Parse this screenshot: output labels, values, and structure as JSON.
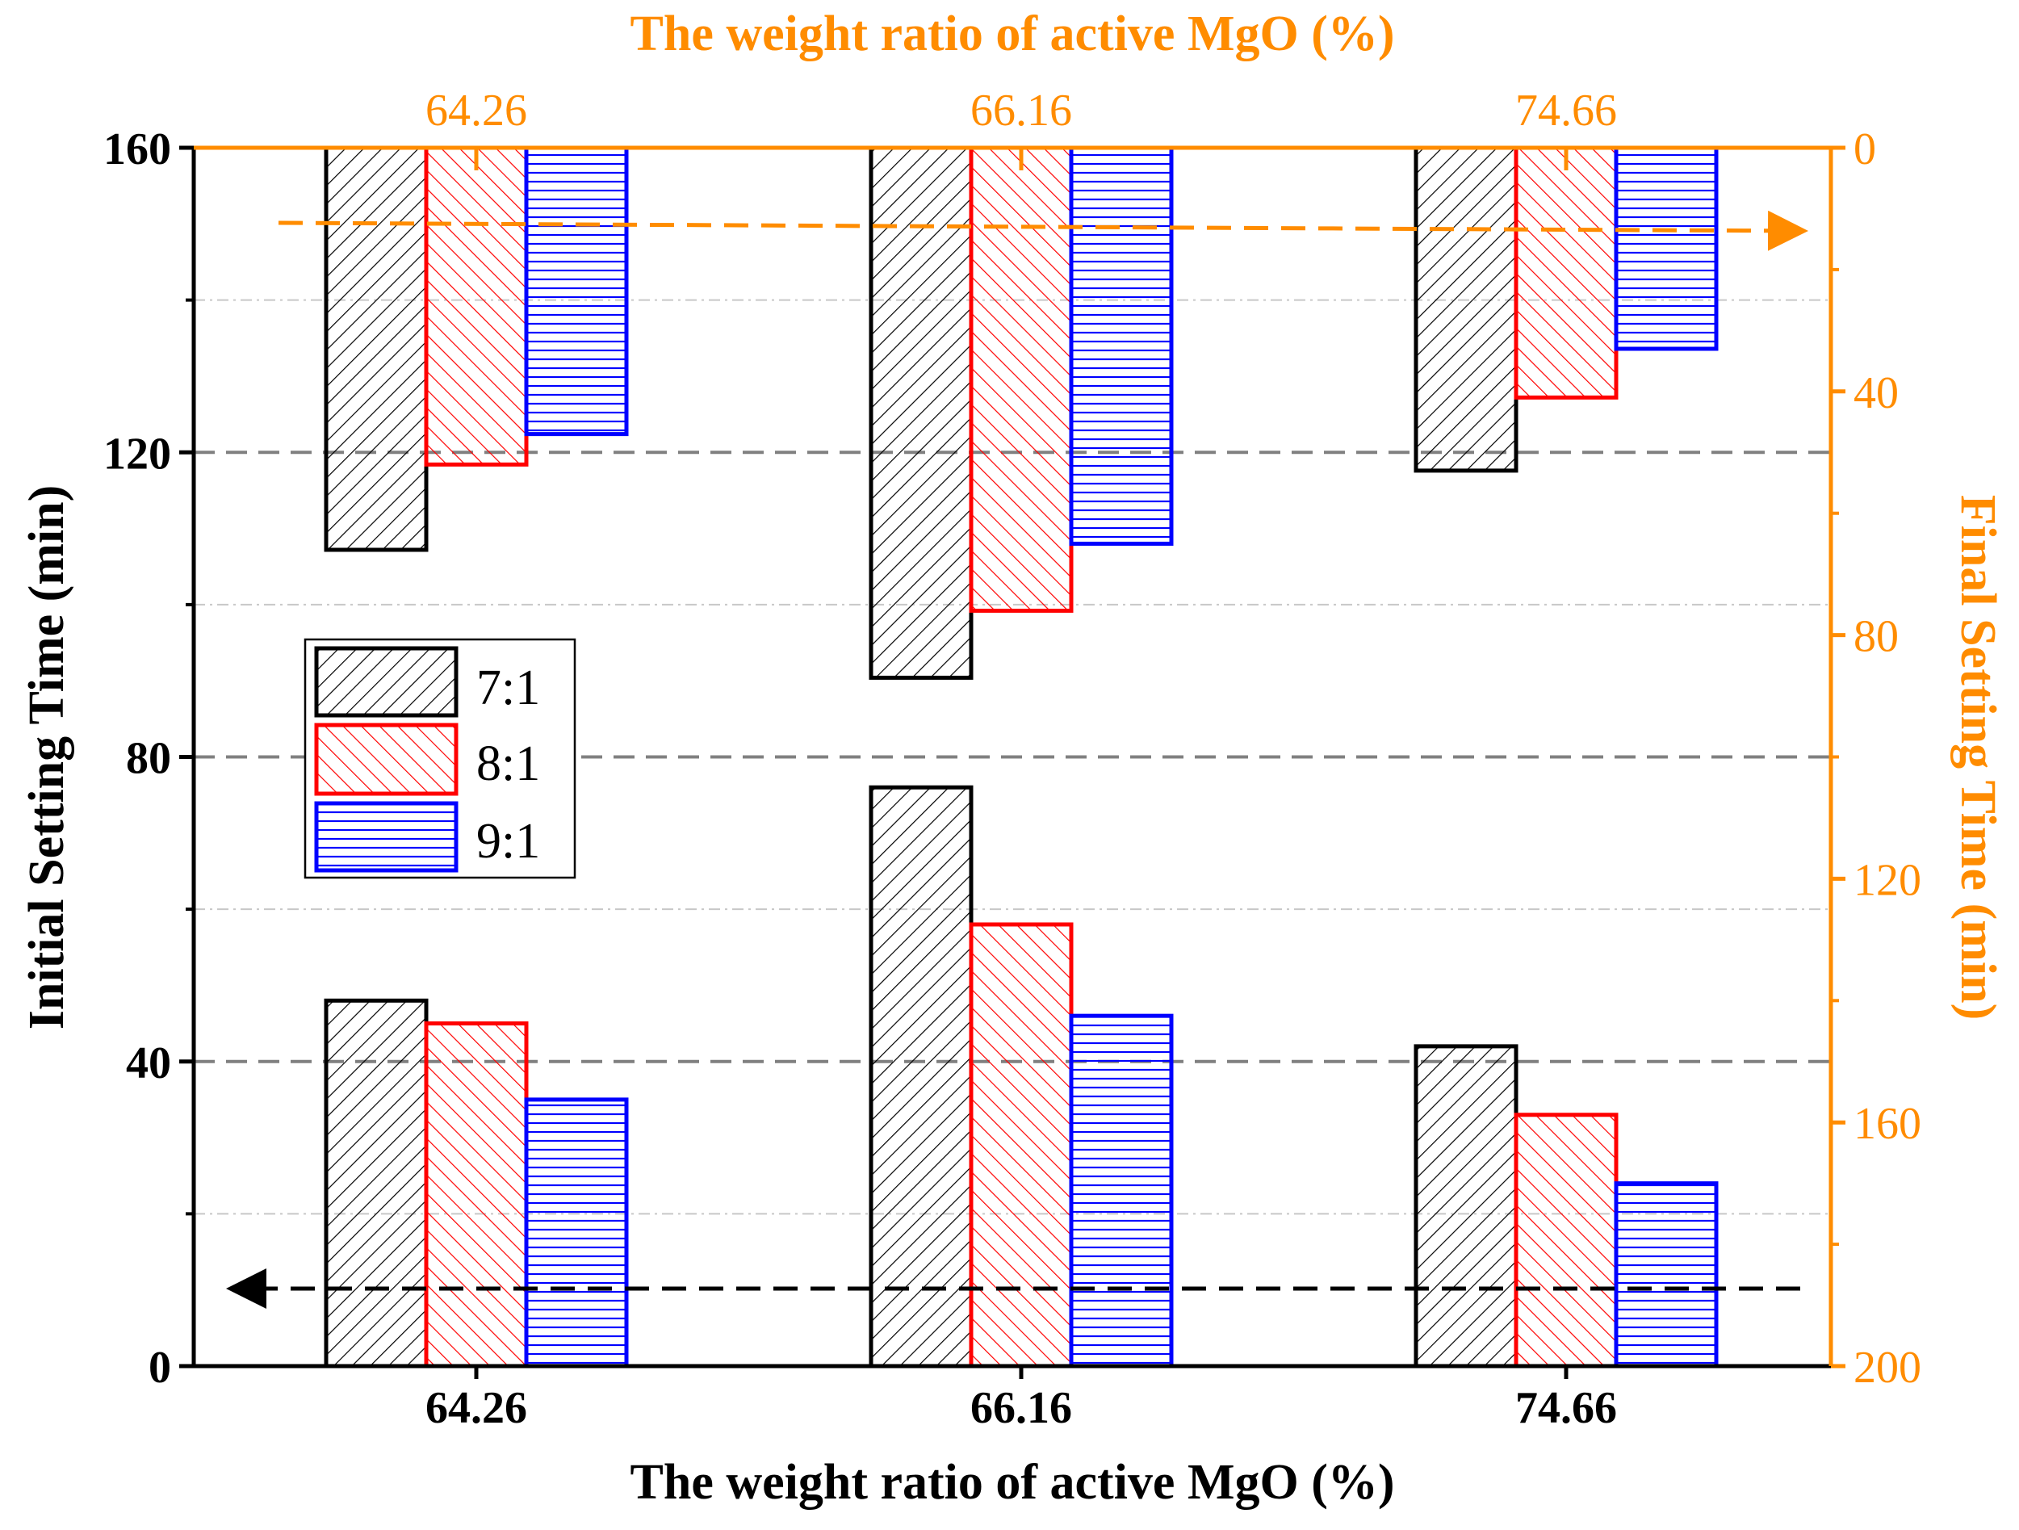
{
  "chart_data": {
    "type": "bar",
    "title_top": "The weight ratio of active MgO (%)",
    "xlabel": "The weight ratio of active MgO (%)",
    "ylabel_left": "Initial Setting Time (min)",
    "ylabel_right": "Final Setting Time (min)",
    "categories": [
      "64.26",
      "66.16",
      "74.66"
    ],
    "top_categories": [
      "64.26",
      "66.16",
      "74.66"
    ],
    "left_axis": {
      "ylim": [
        0,
        160
      ],
      "ticks": [
        "0",
        "40",
        "80",
        "120",
        "160"
      ],
      "tick_values": [
        0,
        40,
        80,
        120,
        160
      ]
    },
    "right_axis": {
      "ylim": [
        0,
        200
      ],
      "reversed": true,
      "ticks": [
        "0",
        "40",
        "80",
        "120",
        "160",
        "200"
      ],
      "tick_values": [
        0,
        40,
        80,
        120,
        160,
        200
      ]
    },
    "series_initial": [
      {
        "name": "7:1",
        "values": [
          48,
          76,
          42
        ]
      },
      {
        "name": "8:1",
        "values": [
          45,
          58,
          33
        ]
      },
      {
        "name": "9:1",
        "values": [
          35,
          46,
          24
        ]
      }
    ],
    "series_final": [
      {
        "name": "7:1",
        "values": [
          66,
          87,
          53
        ]
      },
      {
        "name": "8:1",
        "values": [
          52,
          76,
          41
        ]
      },
      {
        "name": "9:1",
        "values": [
          47,
          65,
          33
        ]
      }
    ],
    "legend": {
      "position": "center-left",
      "entries": [
        "7:1",
        "8:1",
        "9:1"
      ]
    },
    "colors": {
      "s71": "#000000",
      "s81": "#ff0000",
      "s91": "#0000ff",
      "accent": "#ff8c00",
      "grid_major": "#808080",
      "grid_minor": "#c8c8c8"
    }
  }
}
